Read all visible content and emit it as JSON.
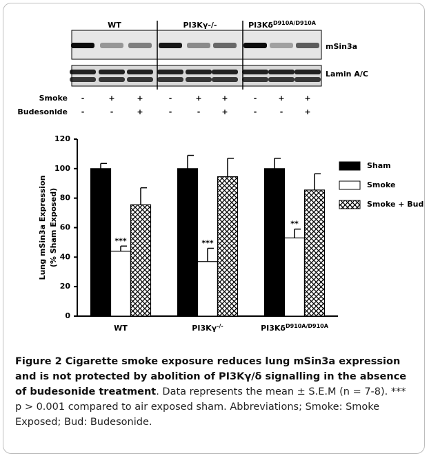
{
  "blot": {
    "groups": [
      {
        "label": "WT"
      },
      {
        "label": "PI3Kγ-/-"
      },
      {
        "label": "PI3Kδ",
        "sup": "D910A/D910A"
      }
    ],
    "bands": [
      "mSin3a",
      "Lamin A/C"
    ],
    "rows": [
      {
        "label": "Smoke",
        "signs": [
          "-",
          "+",
          "+",
          "-",
          "+",
          "+",
          "-",
          "+",
          "+"
        ]
      },
      {
        "label": "Budesonide",
        "signs": [
          "-",
          "-",
          "+",
          "-",
          "-",
          "+",
          "-",
          "-",
          "+"
        ]
      }
    ]
  },
  "chart_data": {
    "type": "bar",
    "y_label": [
      "Lung  mSin3a Expression",
      "(% Sham Exposed)"
    ],
    "categories": [
      "WT",
      "PI3Kγ",
      "PI3Kδ"
    ],
    "category_superscripts": [
      null,
      "-/-",
      "D910A/D910A"
    ],
    "series": [
      {
        "name": "Sham",
        "color": "#000000",
        "values": [
          100,
          100,
          100
        ],
        "errors": [
          3.5,
          9,
          7
        ]
      },
      {
        "name": "Smoke",
        "color": "#ffffff",
        "values": [
          44,
          37,
          53
        ],
        "errors": [
          3.5,
          9,
          6
        ],
        "annotations": [
          "***",
          "***",
          "**"
        ]
      },
      {
        "name": "Smoke + Bud",
        "color": "crosshatch",
        "values": [
          75.5,
          94.5,
          85.5
        ],
        "errors": [
          11.5,
          12.5,
          11
        ]
      }
    ],
    "ylim": [
      0,
      120
    ],
    "yticks": [
      0,
      20,
      40,
      60,
      80,
      100,
      120
    ],
    "grid": false,
    "legend": "right"
  },
  "caption": {
    "bold": "Figure 2 Cigarette smoke exposure reduces lung mSin3a expression and is not protected by abolition of PI3Kγ/δ signalling in the absence of budesonide treatment",
    "text": ". Data represents the mean ± S.E.M (n = 7-8). *** p > 0.001 compared to air exposed sham. Abbreviations; Smoke: Smoke Exposed; Bud: Budesonide."
  }
}
